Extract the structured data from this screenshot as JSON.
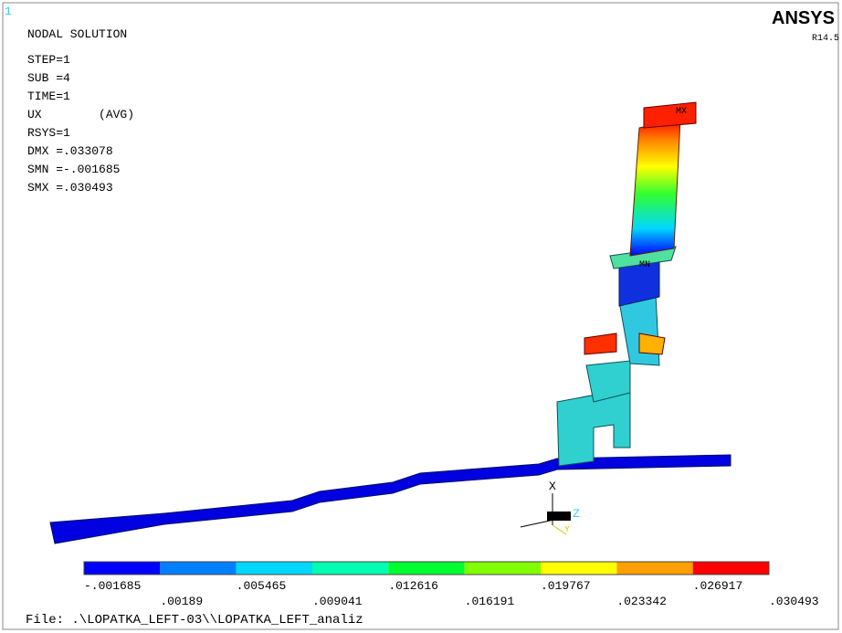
{
  "window_number": "1",
  "header": {
    "title": "NODAL SOLUTION",
    "info": [
      "STEP=1",
      "SUB =4",
      "TIME=1",
      "UX        (AVG)",
      "RSYS=1",
      "DMX =.033078",
      "SMN =-.001685",
      "SMX =.030493"
    ]
  },
  "logo": {
    "name": "ANSYS",
    "version": "R14.5"
  },
  "model_labels": {
    "max": "MX",
    "min": "MN"
  },
  "triad": {
    "x": "X",
    "y": "Y",
    "z": "Z"
  },
  "legend": {
    "colors": [
      "#0000ff",
      "#0080ff",
      "#00d8ff",
      "#00ffb0",
      "#00ff30",
      "#80ff00",
      "#ffff00",
      "#ffa000",
      "#ff0000"
    ],
    "labels": [
      "-.001685",
      ".00189",
      ".005465",
      ".009041",
      ".012616",
      ".016191",
      ".019767",
      ".023342",
      ".026917",
      ".030493"
    ]
  },
  "footer": {
    "file": "File: .\\LOPATKA_LEFT-03\\\\LOPATKA_LEFT_analiz"
  }
}
